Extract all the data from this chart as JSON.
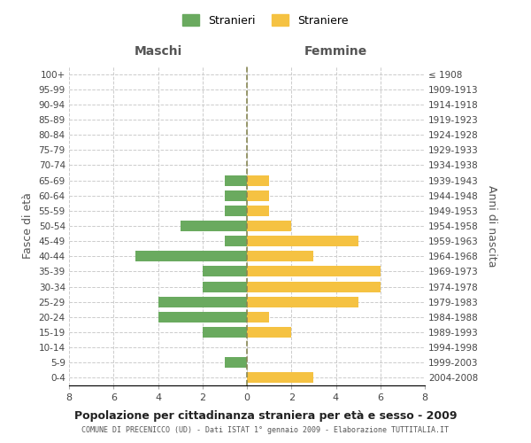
{
  "age_groups": [
    "100+",
    "95-99",
    "90-94",
    "85-89",
    "80-84",
    "75-79",
    "70-74",
    "65-69",
    "60-64",
    "55-59",
    "50-54",
    "45-49",
    "40-44",
    "35-39",
    "30-34",
    "25-29",
    "20-24",
    "15-19",
    "10-14",
    "5-9",
    "0-4"
  ],
  "birth_years": [
    "≤ 1908",
    "1909-1913",
    "1914-1918",
    "1919-1923",
    "1924-1928",
    "1929-1933",
    "1934-1938",
    "1939-1943",
    "1944-1948",
    "1949-1953",
    "1954-1958",
    "1959-1963",
    "1964-1968",
    "1969-1973",
    "1974-1978",
    "1979-1983",
    "1984-1988",
    "1989-1993",
    "1994-1998",
    "1999-2003",
    "2004-2008"
  ],
  "males": [
    0,
    0,
    0,
    0,
    0,
    0,
    0,
    1,
    1,
    1,
    3,
    1,
    5,
    2,
    2,
    4,
    4,
    2,
    0,
    1,
    0
  ],
  "females": [
    0,
    0,
    0,
    0,
    0,
    0,
    0,
    1,
    1,
    1,
    2,
    5,
    3,
    6,
    6,
    5,
    1,
    2,
    0,
    0,
    3
  ],
  "male_color": "#6aaa5f",
  "female_color": "#f5c242",
  "title": "Popolazione per cittadinanza straniera per età e sesso - 2009",
  "subtitle": "COMUNE DI PRECENICCO (UD) - Dati ISTAT 1° gennaio 2009 - Elaborazione TUTTITALIA.IT",
  "xlabel_left": "Maschi",
  "xlabel_right": "Femmine",
  "ylabel_left": "Fasce di età",
  "ylabel_right": "Anni di nascita",
  "legend_male": "Stranieri",
  "legend_female": "Straniere",
  "xlim": 8,
  "background_color": "#ffffff",
  "grid_color": "#cccccc"
}
